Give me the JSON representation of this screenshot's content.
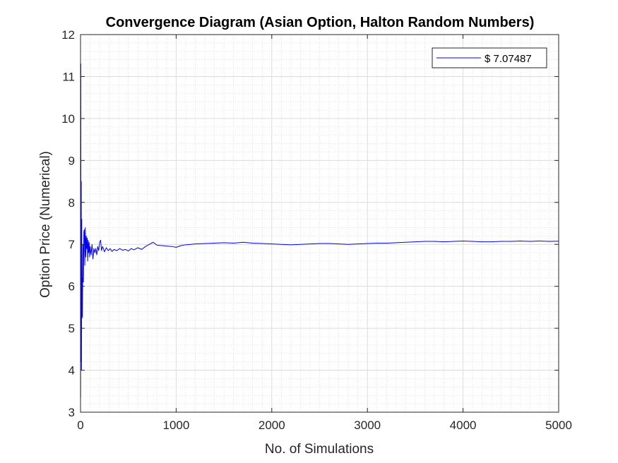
{
  "chart_data": {
    "type": "line",
    "title": "Convergence Diagram (Asian Option, Halton Random Numbers)",
    "xlabel": "No. of Simulations",
    "ylabel": "Option Price (Numerical)",
    "xlim": [
      0,
      5000
    ],
    "ylim": [
      3,
      12
    ],
    "xticks": [
      0,
      1000,
      2000,
      3000,
      4000,
      5000
    ],
    "yticks": [
      3,
      4,
      5,
      6,
      7,
      8,
      9,
      10,
      11,
      12
    ],
    "grid": true,
    "minor_grid": true,
    "legend_position": "top-right",
    "series": [
      {
        "name": "$ 7.07487",
        "color": "#0000ff",
        "x": [
          1,
          3,
          5,
          8,
          10,
          13,
          15,
          18,
          20,
          25,
          30,
          35,
          40,
          45,
          50,
          55,
          60,
          65,
          70,
          75,
          80,
          85,
          90,
          95,
          100,
          110,
          120,
          130,
          140,
          150,
          160,
          170,
          180,
          190,
          200,
          210,
          220,
          230,
          240,
          250,
          270,
          290,
          310,
          330,
          350,
          380,
          410,
          440,
          470,
          500,
          530,
          560,
          600,
          640,
          680,
          720,
          760,
          800,
          850,
          900,
          950,
          1000,
          1050,
          1100,
          1150,
          1200,
          1300,
          1400,
          1500,
          1600,
          1700,
          1750,
          1800,
          1900,
          2000,
          2100,
          2200,
          2300,
          2400,
          2500,
          2600,
          2700,
          2800,
          2900,
          3000,
          3100,
          3200,
          3300,
          3400,
          3500,
          3600,
          3700,
          3800,
          3900,
          4000,
          4100,
          4200,
          4300,
          4400,
          4500,
          4600,
          4700,
          4800,
          4900,
          5000
        ],
        "values": [
          3.35,
          11.3,
          4.2,
          8.5,
          4.0,
          7.6,
          5.3,
          6.2,
          5.25,
          7.0,
          6.1,
          7.3,
          7.35,
          6.5,
          7.4,
          6.7,
          7.2,
          6.9,
          7.15,
          6.6,
          7.1,
          6.8,
          7.05,
          6.7,
          6.95,
          6.75,
          7.0,
          6.65,
          6.9,
          6.8,
          6.9,
          6.75,
          6.95,
          6.85,
          7.05,
          7.1,
          6.85,
          6.95,
          6.9,
          6.82,
          6.92,
          6.85,
          6.9,
          6.83,
          6.88,
          6.85,
          6.9,
          6.86,
          6.88,
          6.84,
          6.9,
          6.87,
          6.92,
          6.88,
          6.95,
          7.0,
          7.05,
          6.98,
          6.97,
          6.96,
          6.95,
          6.93,
          6.97,
          6.99,
          7.0,
          7.01,
          7.02,
          7.03,
          7.04,
          7.03,
          7.05,
          7.04,
          7.03,
          7.02,
          7.01,
          7.0,
          6.99,
          7.0,
          7.01,
          7.02,
          7.02,
          7.01,
          7.0,
          7.01,
          7.02,
          7.03,
          7.03,
          7.04,
          7.05,
          7.06,
          7.07,
          7.07,
          7.06,
          7.07,
          7.08,
          7.07,
          7.06,
          7.06,
          7.07,
          7.07,
          7.08,
          7.07,
          7.08,
          7.07,
          7.07487
        ]
      }
    ]
  }
}
